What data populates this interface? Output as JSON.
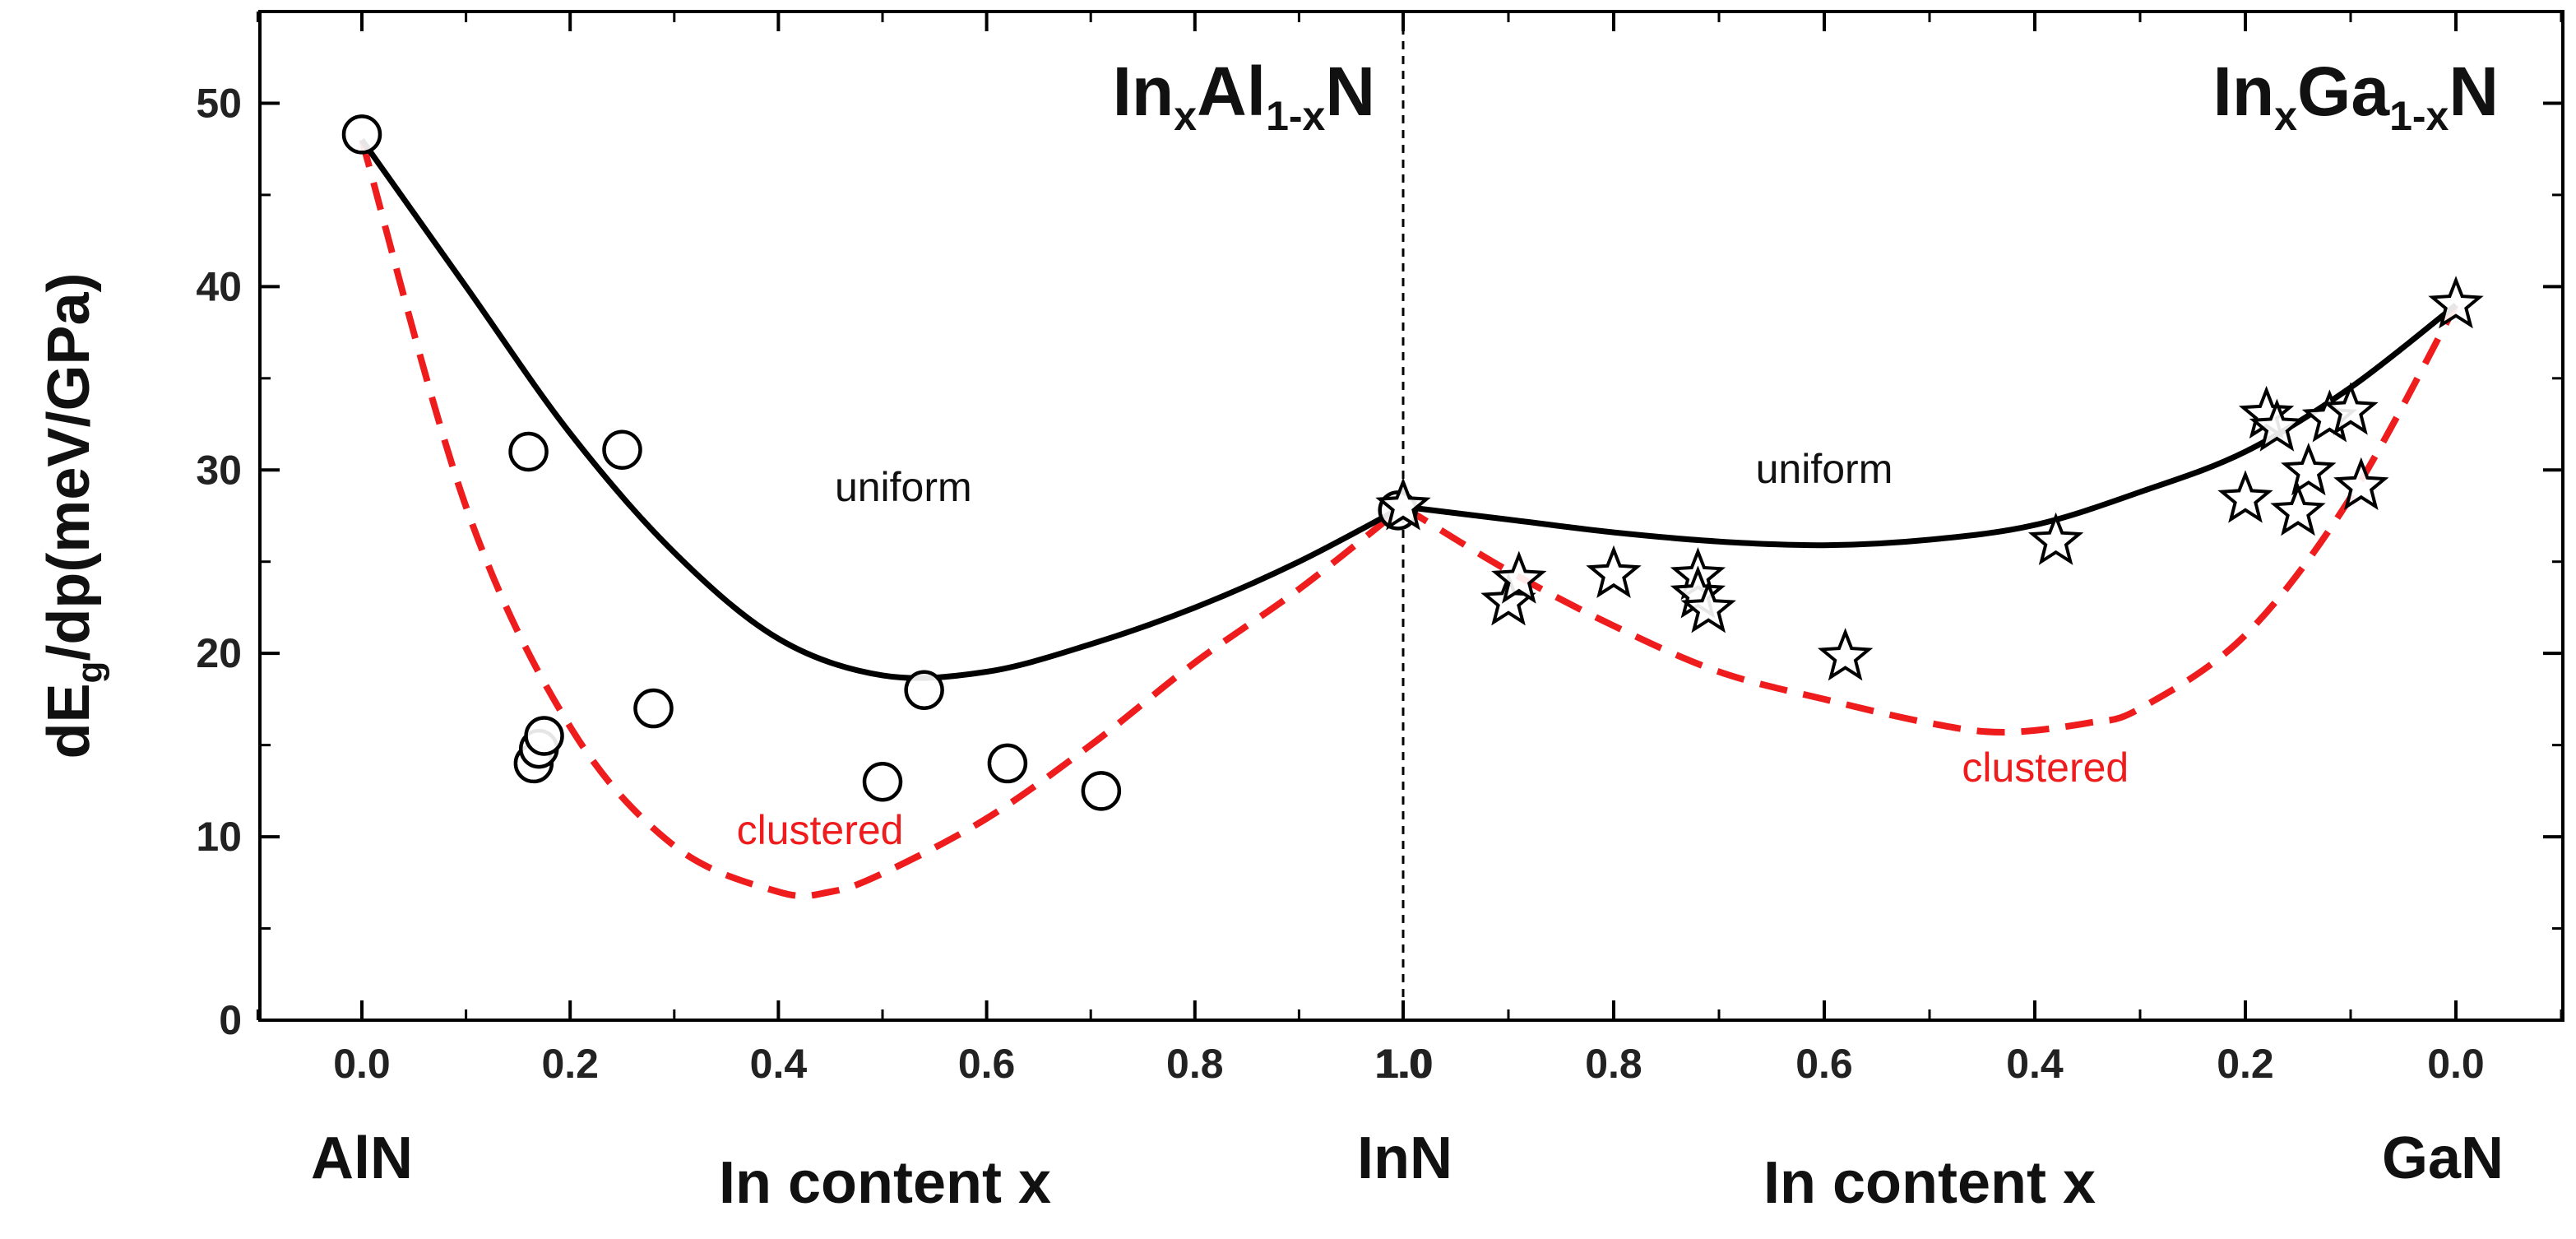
{
  "chart_data": {
    "type": "scatter",
    "ylabel": {
      "main": "dE",
      "sub": "g",
      "rest": "/dp(meV/GPa)"
    },
    "ylim": [
      0,
      55
    ],
    "yticks": [
      "0",
      "10",
      "20",
      "30",
      "40",
      "50"
    ],
    "panels": [
      {
        "compound": {
          "p1": "In",
          "s1": "x",
          "p2": "Al",
          "s2": "1-x",
          "p3": "N"
        },
        "xlabel": "In content x",
        "xticks": [
          "0.0",
          "0.2",
          "0.4",
          "0.6",
          "0.8"
        ],
        "end_label_left": "AlN",
        "marker": "circle",
        "points": [
          {
            "x": 0.0,
            "y": 48.3
          },
          {
            "x": 0.16,
            "y": 31.0
          },
          {
            "x": 0.25,
            "y": 31.1
          },
          {
            "x": 0.165,
            "y": 14.0
          },
          {
            "x": 0.17,
            "y": 14.8
          },
          {
            "x": 0.175,
            "y": 15.5
          },
          {
            "x": 0.28,
            "y": 17.0
          },
          {
            "x": 0.5,
            "y": 13.0
          },
          {
            "x": 0.54,
            "y": 18.0
          },
          {
            "x": 0.62,
            "y": 14.0
          },
          {
            "x": 0.71,
            "y": 12.5
          },
          {
            "x": 0.995,
            "y": 27.8
          }
        ],
        "curves": [
          {
            "name": "uniform",
            "color": "#000000",
            "dash": false,
            "points": [
              [
                0.0,
                48.0
              ],
              [
                0.1,
                40.0
              ],
              [
                0.2,
                32.0
              ],
              [
                0.3,
                25.5
              ],
              [
                0.4,
                20.8
              ],
              [
                0.5,
                18.8
              ],
              [
                0.6,
                19.0
              ],
              [
                0.7,
                20.5
              ],
              [
                0.8,
                22.5
              ],
              [
                0.9,
                25.0
              ],
              [
                1.0,
                28.0
              ]
            ]
          },
          {
            "name": "clustered",
            "color": "#ee1c1c",
            "dash": true,
            "points": [
              [
                0.0,
                48.0
              ],
              [
                0.1,
                28.0
              ],
              [
                0.2,
                16.0
              ],
              [
                0.3,
                9.5
              ],
              [
                0.4,
                7.0
              ],
              [
                0.45,
                7.0
              ],
              [
                0.5,
                8.0
              ],
              [
                0.6,
                11.0
              ],
              [
                0.7,
                15.0
              ],
              [
                0.8,
                19.5
              ],
              [
                0.9,
                23.5
              ],
              [
                1.0,
                28.0
              ]
            ]
          }
        ],
        "annotations": [
          {
            "text": "uniform",
            "x": 0.52,
            "y": 28.3,
            "color": "#111111"
          },
          {
            "text": "clustered",
            "x": 0.44,
            "y": 9.6,
            "color": "#ee1c1c"
          }
        ]
      },
      {
        "compound": {
          "p1": "In",
          "s1": "x",
          "p2": "Ga",
          "s2": "1-x",
          "p3": "N"
        },
        "xlabel": "In content x",
        "xticks": [
          "1.0",
          "0.8",
          "0.6",
          "0.4",
          "0.2",
          "0.0"
        ],
        "center_label": "InN",
        "end_label_right": "GaN",
        "marker": "star",
        "points": [
          {
            "x": 1.0,
            "y": 28.0
          },
          {
            "x": 0.9,
            "y": 22.8
          },
          {
            "x": 0.89,
            "y": 24.0
          },
          {
            "x": 0.8,
            "y": 24.3
          },
          {
            "x": 0.72,
            "y": 24.2
          },
          {
            "x": 0.72,
            "y": 23.2
          },
          {
            "x": 0.71,
            "y": 22.4
          },
          {
            "x": 0.58,
            "y": 19.8
          },
          {
            "x": 0.38,
            "y": 26.1
          },
          {
            "x": 0.18,
            "y": 33.0
          },
          {
            "x": 0.17,
            "y": 32.3
          },
          {
            "x": 0.12,
            "y": 32.8
          },
          {
            "x": 0.1,
            "y": 33.2
          },
          {
            "x": 0.2,
            "y": 28.4
          },
          {
            "x": 0.14,
            "y": 29.9
          },
          {
            "x": 0.09,
            "y": 29.1
          },
          {
            "x": 0.15,
            "y": 27.7
          },
          {
            "x": 0.0,
            "y": 39.0
          }
        ],
        "curves": [
          {
            "name": "uniform",
            "color": "#000000",
            "dash": false,
            "points": [
              [
                1.0,
                28.0
              ],
              [
                0.9,
                27.3
              ],
              [
                0.8,
                26.6
              ],
              [
                0.7,
                26.1
              ],
              [
                0.6,
                25.9
              ],
              [
                0.5,
                26.2
              ],
              [
                0.4,
                27.0
              ],
              [
                0.3,
                28.8
              ],
              [
                0.2,
                31.0
              ],
              [
                0.1,
                34.5
              ],
              [
                0.0,
                39.0
              ]
            ]
          },
          {
            "name": "clustered",
            "color": "#ee1c1c",
            "dash": true,
            "points": [
              [
                1.0,
                28.0
              ],
              [
                0.9,
                24.5
              ],
              [
                0.8,
                21.5
              ],
              [
                0.7,
                19.0
              ],
              [
                0.6,
                17.5
              ],
              [
                0.5,
                16.2
              ],
              [
                0.43,
                15.7
              ],
              [
                0.35,
                16.2
              ],
              [
                0.3,
                17.0
              ],
              [
                0.2,
                21.0
              ],
              [
                0.1,
                28.5
              ],
              [
                0.0,
                39.0
              ]
            ]
          }
        ],
        "annotations": [
          {
            "text": "uniform",
            "x": 0.6,
            "y": 29.3,
            "color": "#111111"
          },
          {
            "text": "clustered",
            "x": 0.39,
            "y": 13.0,
            "color": "#ee1c1c"
          }
        ]
      }
    ]
  }
}
